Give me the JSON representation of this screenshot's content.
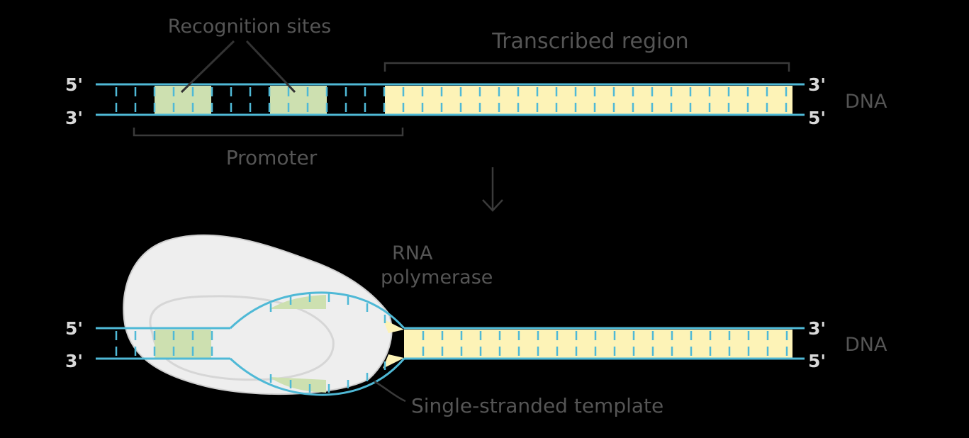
{
  "top_panel": {
    "labels": {
      "recognition_sites": "Recognition sites",
      "transcribed_region": "Transcribed region",
      "promoter": "Promoter",
      "dna": "DNA"
    },
    "strand_ends": {
      "top_left": "5'",
      "bottom_left": "3'",
      "top_right": "3'",
      "bottom_right": "5'"
    }
  },
  "bottom_panel": {
    "labels": {
      "rna_polymerase_line1": "RNA",
      "rna_polymerase_line2": "polymerase",
      "single_stranded_template": "Single-stranded template",
      "dna": "DNA"
    },
    "strand_ends": {
      "top_left": "5'",
      "bottom_left": "3'",
      "top_right": "3'",
      "bottom_right": "5'"
    }
  },
  "colors": {
    "background": "#000000",
    "strand": "#4fb9d6",
    "recognition_site": "#cde0b0",
    "transcribed": "#fdf3b7",
    "polymerase": "#eeeeee",
    "label_text": "#555555",
    "end_text": "#d9d9d9",
    "arrow": "#3a3a3a"
  }
}
